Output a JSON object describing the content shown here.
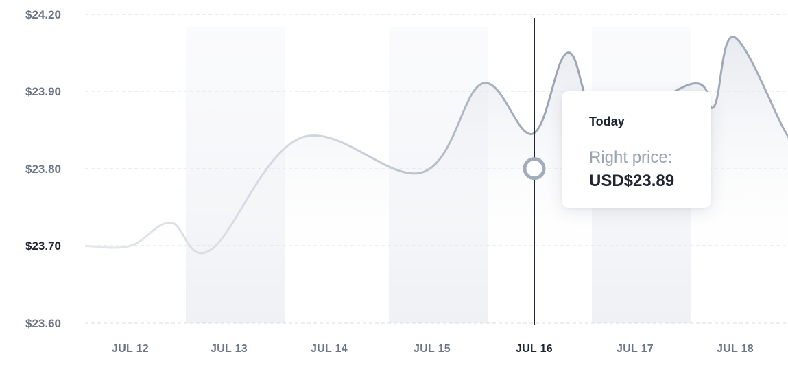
{
  "chart_data": {
    "type": "area",
    "x": [
      "JUL 12",
      "JUL 13",
      "JUL 14",
      "JUL 15",
      "JUL 16",
      "JUL 17",
      "JUL 18"
    ],
    "active_x": "JUL 16",
    "y_ticks": [
      "$23.60",
      "$23.70",
      "$23.80",
      "$23.90",
      "$24.20"
    ],
    "active_y": "$23.70",
    "series": [
      {
        "points": [
          [
            "JUL 12",
            23.7
          ],
          [
            "JUL 12.4",
            23.73
          ],
          [
            "JUL 12.8",
            23.695
          ],
          [
            "JUL 13.7",
            23.84
          ],
          [
            "JUL 14.9",
            23.795
          ],
          [
            "JUL 15.5",
            23.91
          ],
          [
            "JUL 16",
            23.845
          ],
          [
            "JUL 16.35",
            23.95
          ],
          [
            "JUL 16.7",
            23.86
          ],
          [
            "JUL 17.6",
            23.91
          ],
          [
            "JUL 17.8",
            23.88
          ],
          [
            "JUL 18",
            23.97
          ],
          [
            "JUL 18.5",
            23.85
          ]
        ]
      }
    ],
    "marker": {
      "x": "JUL 16",
      "y": 23.8
    },
    "grid": true,
    "highlight_bands": [
      "JUL 13",
      "JUL 15",
      "JUL 17"
    ]
  },
  "tooltip": {
    "title": "Today",
    "label": "Right price:",
    "value": "USD$23.89"
  }
}
